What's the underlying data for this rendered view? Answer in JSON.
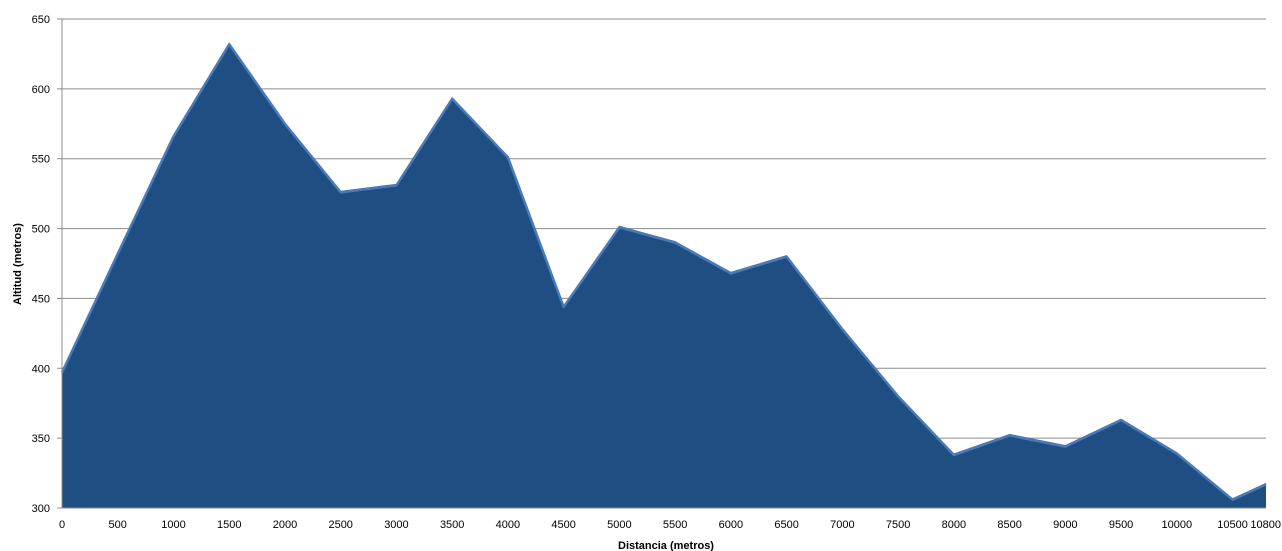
{
  "chart_data": {
    "type": "area",
    "title": "",
    "xlabel": "Distancia (metros)",
    "ylabel": "Altitud (metros)",
    "x": [
      0,
      500,
      1000,
      1500,
      2000,
      2500,
      3000,
      3500,
      4000,
      4500,
      5000,
      5500,
      6000,
      6500,
      7000,
      7500,
      8000,
      8500,
      9000,
      9500,
      10000,
      10500,
      10800
    ],
    "x_ticks": [
      "0",
      "500",
      "1000",
      "1500",
      "2000",
      "2500",
      "3000",
      "3500",
      "4000",
      "4500",
      "5000",
      "5500",
      "6000",
      "6500",
      "7000",
      "7500",
      "8000",
      "8500",
      "9000",
      "9500",
      "10000",
      "10500",
      "10800"
    ],
    "y_ticks": [
      "300",
      "350",
      "400",
      "450",
      "500",
      "550",
      "600",
      "650"
    ],
    "ylim": [
      300,
      650
    ],
    "grid": true,
    "legend": "none",
    "series": [
      {
        "values": [
          398,
          483,
          567,
          633,
          576,
          527,
          532,
          594,
          552,
          445,
          502,
          491,
          469,
          481,
          429,
          381,
          339,
          353,
          345,
          364,
          340,
          307,
          318
        ],
        "color": "#1f4e82",
        "edge_color": "#4a7ab8"
      }
    ]
  }
}
